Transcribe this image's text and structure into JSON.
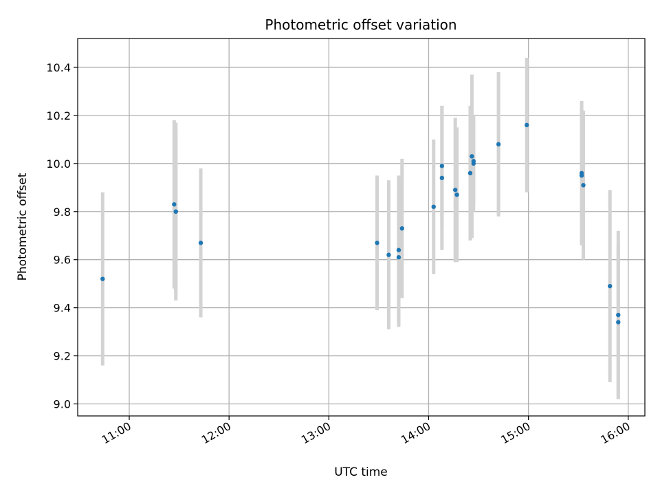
{
  "chart_data": {
    "type": "scatter",
    "title": "Photometric offset variation",
    "xlabel": "UTC time",
    "ylabel": "Photometric offset",
    "grid": true,
    "xlim": [
      "10:29",
      "16:10"
    ],
    "ylim": [
      8.95,
      10.52
    ],
    "x_ticks": [
      "11:00",
      "12:00",
      "13:00",
      "14:00",
      "15:00",
      "16:00"
    ],
    "y_ticks": [
      9.0,
      9.2,
      9.4,
      9.6,
      9.8,
      10.0,
      10.2,
      10.4
    ],
    "y_tick_labels": [
      "9.0",
      "9.2",
      "9.4",
      "9.6",
      "9.8",
      "10.0",
      "10.2",
      "10.4"
    ],
    "colors": {
      "marker": "#1f77b4",
      "errorbar": "#d3d3d3",
      "grid": "#b0b0b0"
    },
    "series": [
      {
        "points": [
          {
            "x": "10:44",
            "y": 9.52,
            "err": 0.36
          },
          {
            "x": "11:27",
            "y": 9.83,
            "err": 0.35
          },
          {
            "x": "11:28",
            "y": 9.8,
            "err": 0.34
          },
          {
            "x": "11:28",
            "y": 9.8,
            "err": 0.37
          },
          {
            "x": "11:43",
            "y": 9.67,
            "err": 0.31
          },
          {
            "x": "13:29",
            "y": 9.67,
            "err": 0.28
          },
          {
            "x": "13:36",
            "y": 9.62,
            "err": 0.31
          },
          {
            "x": "13:42",
            "y": 9.64,
            "err": 0.31
          },
          {
            "x": "13:42",
            "y": 9.61,
            "err": 0.29
          },
          {
            "x": "13:44",
            "y": 9.73,
            "err": 0.29
          },
          {
            "x": "14:03",
            "y": 9.82,
            "err": 0.28
          },
          {
            "x": "14:08",
            "y": 9.94,
            "err": 0.3
          },
          {
            "x": "14:08",
            "y": 9.99,
            "err": 0.25
          },
          {
            "x": "14:16",
            "y": 9.89,
            "err": 0.3
          },
          {
            "x": "14:17",
            "y": 9.87,
            "err": 0.28
          },
          {
            "x": "14:25",
            "y": 9.96,
            "err": 0.28
          },
          {
            "x": "14:26",
            "y": 10.03,
            "err": 0.34
          },
          {
            "x": "14:27",
            "y": 10.01,
            "err": 0.18
          },
          {
            "x": "14:27",
            "y": 10.0,
            "err": 0.2
          },
          {
            "x": "14:42",
            "y": 10.08,
            "err": 0.3
          },
          {
            "x": "14:59",
            "y": 10.16,
            "err": 0.28
          },
          {
            "x": "15:32",
            "y": 9.96,
            "err": 0.3
          },
          {
            "x": "15:32",
            "y": 9.95,
            "err": 0.28
          },
          {
            "x": "15:33",
            "y": 9.91,
            "err": 0.31
          },
          {
            "x": "15:49",
            "y": 9.49,
            "err": 0.4
          },
          {
            "x": "15:54",
            "y": 9.37,
            "err": 0.35
          },
          {
            "x": "15:54",
            "y": 9.34,
            "err": 0.32
          }
        ]
      }
    ]
  }
}
